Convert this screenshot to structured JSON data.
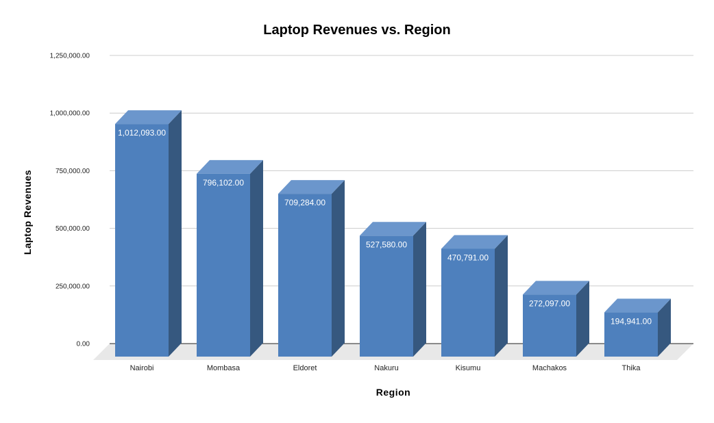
{
  "chart_data": {
    "type": "bar",
    "title": "Laptop Revenues vs. Region",
    "xlabel": "Region",
    "ylabel": "Laptop Revenues",
    "categories": [
      "Nairobi",
      "Mombasa",
      "Eldoret",
      "Nakuru",
      "Kisumu",
      "Machakos",
      "Thika"
    ],
    "values": [
      1012093,
      796102,
      709284,
      527580,
      470791,
      272097,
      194941
    ],
    "data_labels": [
      "1,012,093.00",
      "796,102.00",
      "709,284.00",
      "527,580.00",
      "470,791.00",
      "272,097.00",
      "194,941.00"
    ],
    "ylim": [
      0,
      1250000
    ],
    "yticks": [
      0,
      250000,
      500000,
      750000,
      1000000,
      1250000
    ],
    "ytick_labels": [
      "0.00",
      "250,000.00",
      "500,000.00",
      "750,000.00",
      "1,000,000.00",
      "1,250,000.00"
    ],
    "grid": true,
    "legend": "none",
    "style": "3d-column",
    "colors": {
      "front": "#4e80bd",
      "top": "#6b96cc",
      "side": "#36587f",
      "floor": "#e8e8e8",
      "grid": "#cccccc"
    }
  }
}
